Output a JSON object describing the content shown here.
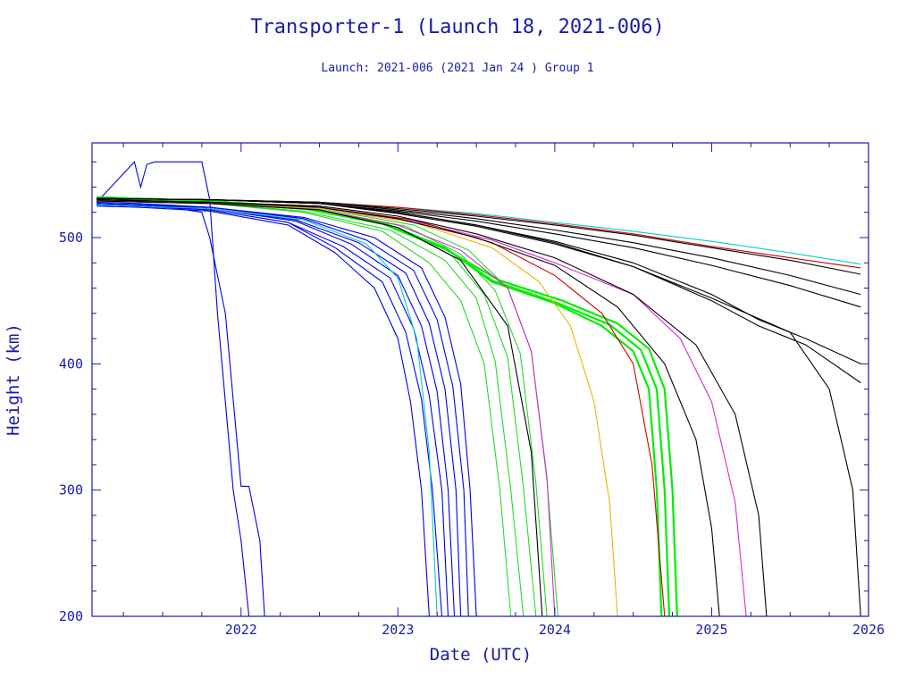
{
  "chart_data": {
    "type": "line",
    "title": "Transporter-1 (Launch 18, 2021-006)",
    "subtitle": "Launch: 2021-006  (2021 Jan 24 )  Group 1",
    "xlabel": "Date (UTC)",
    "ylabel": "Height (km)",
    "xlim": [
      2021.05,
      2026.0
    ],
    "ylim": [
      200,
      575
    ],
    "x_ticks": [
      "2022",
      "2023",
      "2024",
      "2025",
      "2026"
    ],
    "y_ticks": [
      "200",
      "300",
      "400",
      "500"
    ],
    "grid": false,
    "colors": {
      "axis": "#1a1aa6",
      "text": "#1a1aa6",
      "blue": "#0000e6",
      "green": "#2ad62a",
      "bright_green": "#00ee00",
      "black": "#000000",
      "cyan": "#00cccc",
      "magenta": "#d22ad2",
      "orange": "#f0b400",
      "red": "#cc0000"
    },
    "series": [
      {
        "color": "blue",
        "x": [
          2021.08,
          2021.35,
          2021.8,
          2022.3,
          2022.6,
          2022.85,
          2023.0,
          2023.08,
          2023.15,
          2023.2
        ],
        "y": [
          525,
          524,
          521,
          510,
          488,
          460,
          420,
          370,
          300,
          200
        ]
      },
      {
        "color": "blue",
        "x": [
          2021.08,
          2021.35,
          2021.8,
          2022.3,
          2022.6,
          2022.9,
          2023.05,
          2023.15,
          2023.22,
          2023.28
        ],
        "y": [
          526,
          525,
          522,
          512,
          492,
          465,
          425,
          372,
          300,
          200
        ]
      },
      {
        "color": "blue",
        "x": [
          2021.08,
          2021.35,
          2021.8,
          2022.3,
          2022.65,
          2022.95,
          2023.1,
          2023.2,
          2023.28,
          2023.32
        ],
        "y": [
          526,
          525,
          522,
          512,
          493,
          468,
          428,
          375,
          300,
          200
        ]
      },
      {
        "color": "blue",
        "x": [
          2021.08,
          2021.35,
          2021.8,
          2022.35,
          2022.7,
          2023.0,
          2023.15,
          2023.25,
          2023.32,
          2023.36
        ],
        "y": [
          527,
          526,
          523,
          513,
          495,
          470,
          430,
          378,
          300,
          200
        ]
      },
      {
        "color": "blue",
        "x": [
          2021.08,
          2021.35,
          2021.8,
          2022.35,
          2022.75,
          2023.05,
          2023.2,
          2023.3,
          2023.37,
          2023.4
        ],
        "y": [
          527,
          526,
          523,
          514,
          496,
          472,
          432,
          380,
          300,
          200
        ]
      },
      {
        "color": "blue",
        "x": [
          2021.08,
          2021.35,
          2021.8,
          2022.4,
          2022.8,
          2023.1,
          2023.25,
          2023.35,
          2023.42,
          2023.45
        ],
        "y": [
          527,
          526,
          524,
          515,
          498,
          474,
          435,
          382,
          300,
          200
        ]
      },
      {
        "color": "blue",
        "x": [
          2021.08,
          2021.35,
          2021.8,
          2022.4,
          2022.85,
          2023.15,
          2023.3,
          2023.4,
          2023.46,
          2023.5
        ],
        "y": [
          528,
          527,
          524,
          516,
          500,
          476,
          437,
          384,
          300,
          200
        ]
      },
      {
        "color": "blue",
        "x": [
          2021.08,
          2021.32,
          2021.36,
          2021.4,
          2021.45,
          2021.55,
          2021.75,
          2021.8,
          2021.85,
          2021.95,
          2022.0,
          2022.05
        ],
        "y": [
          528,
          560,
          540,
          558,
          560,
          560,
          560,
          530,
          440,
          300,
          260,
          200
        ]
      },
      {
        "color": "blue",
        "x": [
          2021.08,
          2021.55,
          2021.75,
          2021.8,
          2021.9,
          2022.0,
          2022.05,
          2022.12,
          2022.15
        ],
        "y": [
          526,
          524,
          520,
          500,
          440,
          303,
          303,
          260,
          200
        ]
      },
      {
        "color": "cyan",
        "x": [
          2021.08,
          2021.8,
          2022.4,
          2022.8,
          2023.0,
          2023.12,
          2023.2,
          2023.25
        ],
        "y": [
          526,
          523,
          514,
          495,
          468,
          420,
          330,
          200
        ]
      },
      {
        "color": "cyan",
        "x": [
          2021.08,
          2021.8,
          2022.5,
          2023.0,
          2023.5,
          2024.0,
          2024.5,
          2025.0,
          2025.5,
          2025.95
        ],
        "y": [
          531,
          530,
          528,
          524,
          519,
          512,
          505,
          497,
          488,
          479
        ]
      },
      {
        "color": "green",
        "x": [
          2021.08,
          2021.8,
          2022.4,
          2022.9,
          2023.2,
          2023.4,
          2023.55,
          2023.65,
          2023.72
        ],
        "y": [
          529,
          527,
          520,
          505,
          480,
          450,
          400,
          300,
          200
        ]
      },
      {
        "color": "green",
        "x": [
          2021.08,
          2021.8,
          2022.4,
          2022.95,
          2023.3,
          2023.5,
          2023.62,
          2023.72,
          2023.8
        ],
        "y": [
          529,
          527,
          521,
          506,
          482,
          452,
          402,
          300,
          200
        ]
      },
      {
        "color": "green",
        "x": [
          2021.08,
          2021.8,
          2022.45,
          2023.0,
          2023.35,
          2023.55,
          2023.7,
          2023.8,
          2023.88
        ],
        "y": [
          530,
          528,
          522,
          508,
          485,
          455,
          405,
          302,
          200
        ]
      },
      {
        "color": "green",
        "x": [
          2021.08,
          2021.8,
          2022.5,
          2023.05,
          2023.4,
          2023.62,
          2023.78,
          2023.88,
          2023.95
        ],
        "y": [
          530,
          528,
          522,
          509,
          487,
          458,
          408,
          305,
          200
        ]
      },
      {
        "color": "green",
        "x": [
          2021.08,
          2021.8,
          2022.5,
          2023.1,
          2023.45,
          2023.7,
          2023.85,
          2023.95,
          2024.02
        ],
        "y": [
          530,
          528,
          523,
          510,
          490,
          460,
          410,
          308,
          200
        ]
      },
      {
        "color": "bright_green",
        "x": [
          2021.08,
          2021.8,
          2022.4,
          2022.9,
          2023.3,
          2023.6,
          2024.0,
          2024.3,
          2024.5,
          2024.6,
          2024.65,
          2024.68
        ],
        "y": [
          532,
          529,
          524,
          512,
          492,
          465,
          448,
          430,
          410,
          380,
          300,
          200
        ]
      },
      {
        "color": "bright_green",
        "x": [
          2021.08,
          2021.8,
          2022.4,
          2022.9,
          2023.3,
          2023.6,
          2024.0,
          2024.35,
          2024.55,
          2024.65,
          2024.7,
          2024.73
        ],
        "y": [
          532,
          529,
          524,
          512,
          492,
          466,
          449,
          431,
          411,
          380,
          300,
          200
        ]
      },
      {
        "color": "bright_green",
        "x": [
          2021.08,
          2021.8,
          2022.4,
          2022.9,
          2023.3,
          2023.65,
          2024.05,
          2024.4,
          2024.6,
          2024.7,
          2024.75,
          2024.78
        ],
        "y": [
          531,
          528,
          523,
          511,
          491,
          466,
          450,
          432,
          412,
          380,
          300,
          200
        ]
      },
      {
        "color": "magenta",
        "x": [
          2021.08,
          2021.8,
          2022.5,
          2023.0,
          2023.4,
          2023.7,
          2023.85,
          2023.95,
          2024.0
        ],
        "y": [
          529,
          527,
          522,
          510,
          490,
          460,
          410,
          310,
          200
        ]
      },
      {
        "color": "magenta",
        "x": [
          2021.08,
          2021.8,
          2022.5,
          2023.1,
          2023.6,
          2024.0,
          2024.5,
          2024.8,
          2025.0,
          2025.15,
          2025.22
        ],
        "y": [
          530,
          528,
          523,
          513,
          498,
          480,
          455,
          420,
          370,
          290,
          200
        ]
      },
      {
        "color": "orange",
        "x": [
          2021.08,
          2021.8,
          2022.5,
          2023.1,
          2023.6,
          2023.9,
          2024.1,
          2024.25,
          2024.35,
          2024.4
        ],
        "y": [
          530,
          528,
          523,
          512,
          492,
          465,
          430,
          370,
          290,
          200
        ]
      },
      {
        "color": "red",
        "x": [
          2021.08,
          2021.8,
          2022.5,
          2023.1,
          2023.6,
          2024.0,
          2024.3,
          2024.5,
          2024.62,
          2024.7
        ],
        "y": [
          530,
          528,
          524,
          514,
          496,
          470,
          440,
          400,
          320,
          200
        ]
      },
      {
        "color": "red",
        "x": [
          2021.08,
          2021.8,
          2022.5,
          2023.0,
          2023.5,
          2024.0,
          2024.5,
          2025.0,
          2025.5,
          2025.95
        ],
        "y": [
          531,
          530,
          528,
          524,
          518,
          511,
          503,
          493,
          484,
          476
        ]
      },
      {
        "color": "black",
        "x": [
          2021.08,
          2021.8,
          2022.5,
          2023.0,
          2023.5,
          2024.0,
          2024.5,
          2025.0,
          2025.5,
          2025.95
        ],
        "y": [
          531,
          530,
          528,
          523,
          517,
          510,
          502,
          492,
          482,
          471
        ]
      },
      {
        "color": "black",
        "x": [
          2021.08,
          2021.8,
          2022.5,
          2023.0,
          2023.5,
          2024.0,
          2024.5,
          2025.0,
          2025.5,
          2025.95
        ],
        "y": [
          531,
          530,
          528,
          522,
          515,
          506,
          496,
          484,
          470,
          455
        ]
      },
      {
        "color": "black",
        "x": [
          2021.08,
          2021.8,
          2022.5,
          2023.0,
          2023.5,
          2024.0,
          2024.5,
          2025.0,
          2025.5,
          2025.95
        ],
        "y": [
          531,
          530,
          527,
          521,
          513,
          503,
          492,
          478,
          462,
          445
        ]
      },
      {
        "color": "black",
        "x": [
          2021.08,
          2021.8,
          2022.5,
          2023.0,
          2023.5,
          2024.0,
          2024.5,
          2025.0,
          2025.3,
          2025.6,
          2025.95
        ],
        "y": [
          531,
          530,
          527,
          520,
          510,
          497,
          480,
          455,
          435,
          420,
          400
        ]
      },
      {
        "color": "black",
        "x": [
          2021.08,
          2021.8,
          2022.5,
          2023.0,
          2023.5,
          2024.0,
          2024.5,
          2025.0,
          2025.3,
          2025.6,
          2025.95
        ],
        "y": [
          531,
          530,
          527,
          519,
          509,
          495,
          477,
          450,
          430,
          415,
          385
        ]
      },
      {
        "color": "black",
        "x": [
          2021.08,
          2021.8,
          2022.5,
          2023.0,
          2023.5,
          2024.0,
          2024.5,
          2025.0,
          2025.5,
          2025.75,
          2025.9,
          2025.95
        ],
        "y": [
          531,
          530,
          527,
          520,
          510,
          496,
          477,
          452,
          425,
          380,
          300,
          200
        ]
      },
      {
        "color": "black",
        "x": [
          2021.08,
          2021.8,
          2022.5,
          2023.0,
          2023.5,
          2024.0,
          2024.4,
          2024.7,
          2024.9,
          2025.0,
          2025.05
        ],
        "y": [
          530,
          528,
          524,
          515,
          500,
          478,
          445,
          400,
          340,
          270,
          200
        ]
      },
      {
        "color": "black",
        "x": [
          2021.08,
          2021.8,
          2022.5,
          2023.0,
          2023.5,
          2024.0,
          2024.5,
          2024.9,
          2025.15,
          2025.3,
          2025.35
        ],
        "y": [
          530,
          528,
          525,
          517,
          503,
          484,
          455,
          415,
          360,
          280,
          200
        ]
      },
      {
        "color": "black",
        "x": [
          2021.08,
          2021.8,
          2022.5,
          2023.0,
          2023.4,
          2023.7,
          2023.85,
          2023.92
        ],
        "y": [
          529,
          527,
          522,
          508,
          482,
          430,
          330,
          200
        ]
      }
    ]
  }
}
